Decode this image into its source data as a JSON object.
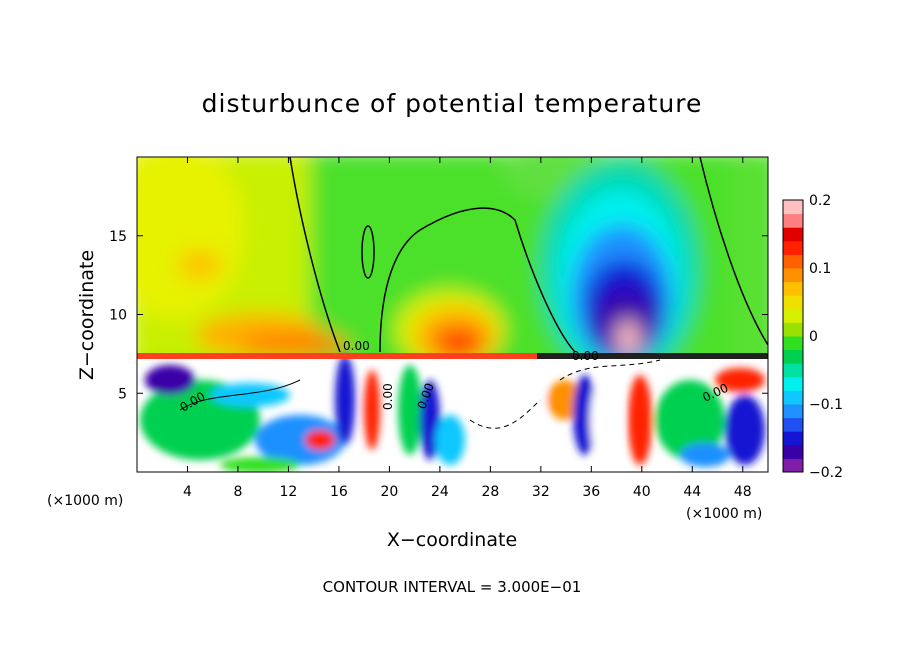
{
  "chart_data": {
    "type": "heatmap",
    "title": "disturbunce of potential temperature",
    "xlabel": "X−coordinate",
    "ylabel": "Z−coordinate",
    "x_unit_left": "(×1000 m)",
    "x_unit_right": "(×1000 m)",
    "footer": "CONTOUR INTERVAL = 3.000E−01",
    "xlim": [
      0,
      50
    ],
    "ylim": [
      0,
      20
    ],
    "x_ticks": [
      "4",
      "8",
      "12",
      "16",
      "20",
      "24",
      "28",
      "32",
      "36",
      "40",
      "44",
      "48"
    ],
    "x_tick_values": [
      4,
      8,
      12,
      16,
      20,
      24,
      28,
      32,
      36,
      40,
      44,
      48
    ],
    "y_ticks": [
      "5",
      "10",
      "15"
    ],
    "y_tick_values": [
      5,
      10,
      15
    ],
    "colorbar": {
      "range": [
        -0.2,
        0.2
      ],
      "ticks": [
        "0.2",
        "0.1",
        "0",
        "−0.1",
        "−0.2"
      ],
      "tick_values": [
        0.2,
        0.1,
        0,
        -0.1,
        -0.2
      ],
      "colors": [
        "#7f1fa8",
        "#3a00a8",
        "#1414d2",
        "#2050f0",
        "#1e90ff",
        "#10c8ff",
        "#00f0f0",
        "#00e0a0",
        "#00d050",
        "#30e020",
        "#9ae000",
        "#d4f000",
        "#f0e000",
        "#ffc000",
        "#ff9000",
        "#ff6000",
        "#ff2000",
        "#e00000",
        "#ff8080",
        "#ffc0c0"
      ]
    },
    "contour_labels": [
      "0.00",
      "0.00",
      "0.00",
      "0.00",
      "0.00",
      "0.00"
    ],
    "features": [
      {
        "name": "warm anomaly",
        "x": 25,
        "z": 9,
        "value": 0.12
      },
      {
        "name": "warm anomaly",
        "x": 5,
        "z": 13,
        "value": 0.08
      },
      {
        "name": "cold anomaly",
        "x": 38,
        "z": 11,
        "value": -0.18
      },
      {
        "name": "warm anomaly",
        "x": 39,
        "z": 9,
        "value": 0.2
      }
    ]
  }
}
